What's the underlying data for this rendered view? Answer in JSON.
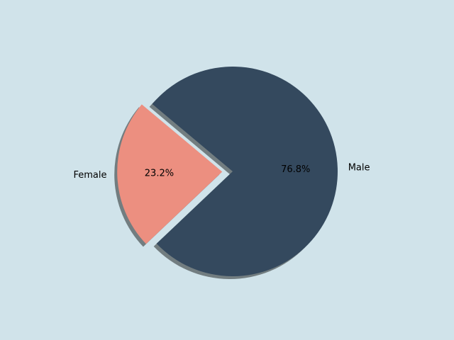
{
  "chart_data": {
    "type": "pie",
    "categories": [
      "Female",
      "Male"
    ],
    "values": [
      23.2,
      76.8
    ],
    "value_labels": [
      "23.2%",
      "76.8%"
    ],
    "colors": [
      "#ec8f80",
      "#34495e"
    ],
    "shadow": true
  }
}
